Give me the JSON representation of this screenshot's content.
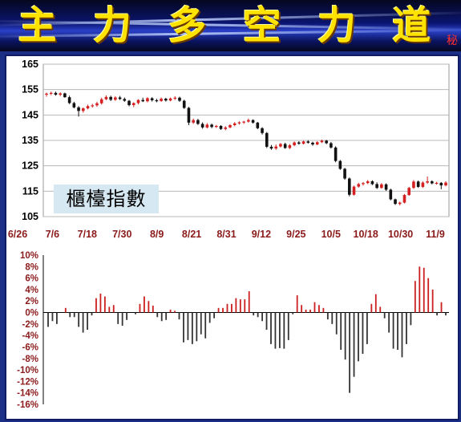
{
  "header": {
    "title_chars": [
      "主",
      "力",
      "多",
      "空",
      "力",
      "道"
    ],
    "secret_mark": "秘"
  },
  "stock_label": "櫃檯指數",
  "colors": {
    "up": "#d42020",
    "down": "#111111",
    "bar_up": "#cc1f1f",
    "bar_down": "#333333",
    "frame": "#1b2f86",
    "axis_text_x": "#8b1a1a"
  },
  "chart_data": [
    {
      "type": "candlestick",
      "title": "",
      "ylim": [
        105,
        165
      ],
      "yticks": [
        105,
        115,
        125,
        135,
        145,
        155,
        165
      ],
      "grid": true,
      "x_tick_labels": [
        "6/26",
        "7/6",
        "7/18",
        "7/30",
        "8/9",
        "8/21",
        "8/31",
        "9/12",
        "9/25",
        "10/5",
        "10/18",
        "10/30",
        "11/9"
      ],
      "candles": [
        {
          "o": 153.0,
          "h": 153.8,
          "l": 152.2,
          "c": 153.4
        },
        {
          "o": 153.4,
          "h": 154.2,
          "l": 152.8,
          "c": 153.7
        },
        {
          "o": 153.7,
          "h": 154.2,
          "l": 152.6,
          "c": 153.0
        },
        {
          "o": 153.0,
          "h": 153.9,
          "l": 152.4,
          "c": 153.5
        },
        {
          "o": 153.5,
          "h": 153.8,
          "l": 151.8,
          "c": 152.0
        },
        {
          "o": 152.0,
          "h": 152.6,
          "l": 149.3,
          "c": 149.7
        },
        {
          "o": 149.7,
          "h": 150.2,
          "l": 147.6,
          "c": 148.0
        },
        {
          "o": 148.0,
          "h": 148.5,
          "l": 144.4,
          "c": 146.6
        },
        {
          "o": 146.6,
          "h": 148.0,
          "l": 145.9,
          "c": 147.6
        },
        {
          "o": 147.6,
          "h": 149.1,
          "l": 147.2,
          "c": 148.5
        },
        {
          "o": 148.5,
          "h": 149.4,
          "l": 147.9,
          "c": 148.8
        },
        {
          "o": 148.8,
          "h": 150.2,
          "l": 148.2,
          "c": 149.6
        },
        {
          "o": 149.6,
          "h": 151.8,
          "l": 149.1,
          "c": 151.2
        },
        {
          "o": 151.2,
          "h": 152.7,
          "l": 150.8,
          "c": 152.1
        },
        {
          "o": 152.1,
          "h": 152.6,
          "l": 150.5,
          "c": 151.0
        },
        {
          "o": 151.0,
          "h": 152.4,
          "l": 150.6,
          "c": 151.9
        },
        {
          "o": 151.9,
          "h": 152.5,
          "l": 150.9,
          "c": 151.3
        },
        {
          "o": 151.3,
          "h": 151.9,
          "l": 150.2,
          "c": 150.6
        },
        {
          "o": 150.6,
          "h": 150.9,
          "l": 148.4,
          "c": 148.9
        },
        {
          "o": 148.9,
          "h": 150.0,
          "l": 148.1,
          "c": 149.7
        },
        {
          "o": 149.7,
          "h": 151.2,
          "l": 149.2,
          "c": 150.9
        },
        {
          "o": 150.9,
          "h": 151.8,
          "l": 150.1,
          "c": 150.4
        },
        {
          "o": 150.4,
          "h": 152.0,
          "l": 150.0,
          "c": 151.6
        },
        {
          "o": 151.6,
          "h": 152.0,
          "l": 150.3,
          "c": 150.8
        },
        {
          "o": 150.8,
          "h": 151.4,
          "l": 150.0,
          "c": 150.5
        },
        {
          "o": 150.5,
          "h": 151.9,
          "l": 150.2,
          "c": 151.4
        },
        {
          "o": 151.4,
          "h": 151.8,
          "l": 150.3,
          "c": 150.7
        },
        {
          "o": 150.7,
          "h": 151.9,
          "l": 150.4,
          "c": 151.5
        },
        {
          "o": 151.5,
          "h": 152.4,
          "l": 150.9,
          "c": 151.8
        },
        {
          "o": 151.8,
          "h": 152.2,
          "l": 150.2,
          "c": 150.6
        },
        {
          "o": 150.6,
          "h": 151.0,
          "l": 147.4,
          "c": 147.8
        },
        {
          "o": 147.8,
          "h": 148.2,
          "l": 141.0,
          "c": 142.0
        },
        {
          "o": 142.0,
          "h": 143.6,
          "l": 141.5,
          "c": 143.0
        },
        {
          "o": 143.0,
          "h": 143.5,
          "l": 141.1,
          "c": 141.5
        },
        {
          "o": 141.5,
          "h": 142.1,
          "l": 139.6,
          "c": 140.1
        },
        {
          "o": 140.1,
          "h": 141.8,
          "l": 139.7,
          "c": 141.2
        },
        {
          "o": 141.2,
          "h": 141.6,
          "l": 139.8,
          "c": 140.3
        },
        {
          "o": 140.3,
          "h": 141.1,
          "l": 139.9,
          "c": 140.7
        },
        {
          "o": 140.7,
          "h": 141.0,
          "l": 139.1,
          "c": 139.5
        },
        {
          "o": 139.5,
          "h": 140.6,
          "l": 139.0,
          "c": 140.1
        },
        {
          "o": 140.1,
          "h": 141.4,
          "l": 139.8,
          "c": 141.0
        },
        {
          "o": 141.0,
          "h": 142.2,
          "l": 140.6,
          "c": 141.7
        },
        {
          "o": 141.7,
          "h": 142.5,
          "l": 141.2,
          "c": 142.1
        },
        {
          "o": 142.1,
          "h": 142.7,
          "l": 141.5,
          "c": 142.4
        },
        {
          "o": 142.4,
          "h": 143.6,
          "l": 142.0,
          "c": 143.0
        },
        {
          "o": 143.0,
          "h": 143.3,
          "l": 141.6,
          "c": 142.0
        },
        {
          "o": 142.0,
          "h": 142.3,
          "l": 139.4,
          "c": 139.8
        },
        {
          "o": 139.8,
          "h": 140.2,
          "l": 137.3,
          "c": 137.9
        },
        {
          "o": 137.9,
          "h": 138.3,
          "l": 132.0,
          "c": 132.5
        },
        {
          "o": 132.5,
          "h": 133.2,
          "l": 131.3,
          "c": 131.8
        },
        {
          "o": 131.8,
          "h": 133.4,
          "l": 131.3,
          "c": 132.6
        },
        {
          "o": 132.6,
          "h": 134.0,
          "l": 132.2,
          "c": 133.6
        },
        {
          "o": 133.6,
          "h": 134.1,
          "l": 131.7,
          "c": 132.0
        },
        {
          "o": 132.0,
          "h": 133.6,
          "l": 131.6,
          "c": 133.1
        },
        {
          "o": 133.1,
          "h": 134.6,
          "l": 132.7,
          "c": 134.2
        },
        {
          "o": 134.2,
          "h": 134.7,
          "l": 133.3,
          "c": 133.7
        },
        {
          "o": 133.7,
          "h": 134.9,
          "l": 133.4,
          "c": 134.6
        },
        {
          "o": 134.6,
          "h": 135.1,
          "l": 133.7,
          "c": 134.1
        },
        {
          "o": 134.1,
          "h": 134.5,
          "l": 132.9,
          "c": 133.4
        },
        {
          "o": 133.4,
          "h": 134.7,
          "l": 133.1,
          "c": 134.3
        },
        {
          "o": 134.3,
          "h": 135.3,
          "l": 134.0,
          "c": 134.9
        },
        {
          "o": 134.9,
          "h": 135.2,
          "l": 133.5,
          "c": 133.9
        },
        {
          "o": 133.9,
          "h": 134.4,
          "l": 131.8,
          "c": 132.2
        },
        {
          "o": 132.2,
          "h": 132.7,
          "l": 126.4,
          "c": 126.9
        },
        {
          "o": 126.9,
          "h": 127.3,
          "l": 123.4,
          "c": 123.8
        },
        {
          "o": 123.8,
          "h": 124.2,
          "l": 119.5,
          "c": 120.0
        },
        {
          "o": 120.0,
          "h": 120.4,
          "l": 113.0,
          "c": 113.6
        },
        {
          "o": 113.6,
          "h": 117.2,
          "l": 113.3,
          "c": 116.8
        },
        {
          "o": 116.8,
          "h": 118.3,
          "l": 116.4,
          "c": 117.8
        },
        {
          "o": 117.8,
          "h": 118.6,
          "l": 117.2,
          "c": 118.2
        },
        {
          "o": 118.2,
          "h": 119.4,
          "l": 117.8,
          "c": 118.9
        },
        {
          "o": 118.9,
          "h": 119.3,
          "l": 117.4,
          "c": 117.8
        },
        {
          "o": 117.8,
          "h": 118.5,
          "l": 115.9,
          "c": 116.3
        },
        {
          "o": 116.3,
          "h": 118.2,
          "l": 116.0,
          "c": 117.7
        },
        {
          "o": 117.7,
          "h": 118.1,
          "l": 115.1,
          "c": 115.6
        },
        {
          "o": 115.6,
          "h": 116.0,
          "l": 111.4,
          "c": 111.8
        },
        {
          "o": 111.8,
          "h": 112.1,
          "l": 109.6,
          "c": 110.0
        },
        {
          "o": 110.0,
          "h": 110.9,
          "l": 109.4,
          "c": 110.5
        },
        {
          "o": 110.5,
          "h": 113.9,
          "l": 110.2,
          "c": 113.5
        },
        {
          "o": 113.5,
          "h": 116.7,
          "l": 113.2,
          "c": 116.3
        },
        {
          "o": 116.3,
          "h": 119.4,
          "l": 115.9,
          "c": 118.8
        },
        {
          "o": 118.8,
          "h": 119.2,
          "l": 116.3,
          "c": 116.7
        },
        {
          "o": 116.7,
          "h": 118.9,
          "l": 116.3,
          "c": 118.4
        },
        {
          "o": 118.4,
          "h": 120.8,
          "l": 117.9,
          "c": 118.9
        },
        {
          "o": 118.9,
          "h": 119.3,
          "l": 117.7,
          "c": 118.1
        },
        {
          "o": 118.1,
          "h": 118.7,
          "l": 117.6,
          "c": 118.3
        },
        {
          "o": 118.3,
          "h": 118.6,
          "l": 115.8,
          "c": 117.3
        },
        {
          "o": 117.3,
          "h": 118.9,
          "l": 116.9,
          "c": 118.4
        }
      ]
    },
    {
      "type": "bar",
      "title": "",
      "ylim": [
        -16,
        10
      ],
      "yticks": [
        "10%",
        "8%",
        "6%",
        "4%",
        "2%",
        "0%",
        "-2%",
        "-4%",
        "-6%",
        "-8%",
        "-10%",
        "-12%",
        "-14%",
        "-16%"
      ],
      "unit": "%",
      "values": [
        -2.5,
        -1.5,
        -2.0,
        0.0,
        0.8,
        -0.8,
        -0.8,
        -2.5,
        -3.5,
        -3.0,
        -0.5,
        2.5,
        3.3,
        2.8,
        1.0,
        1.3,
        -2.0,
        -2.3,
        -1.3,
        0.0,
        -0.3,
        1.5,
        2.8,
        2.0,
        1.2,
        -0.8,
        -1.5,
        -1.3,
        0.5,
        0.3,
        -1.2,
        -5.2,
        -4.8,
        -5.5,
        -5.0,
        -3.8,
        -4.5,
        -1.8,
        -1.0,
        0.8,
        0.8,
        1.5,
        1.5,
        2.5,
        2.3,
        2.3,
        3.7,
        -0.5,
        -0.8,
        -1.5,
        -3.0,
        -5.5,
        -6.3,
        -6.2,
        -6.3,
        -4.8,
        -0.3,
        3.0,
        1.3,
        0.5,
        0.5,
        1.8,
        1.3,
        0.8,
        -1.2,
        -2.0,
        -3.8,
        -6.5,
        -8.2,
        -14.0,
        -11.2,
        -8.5,
        -7.2,
        -5.5,
        1.5,
        3.2,
        1.0,
        -1.0,
        -3.5,
        -6.3,
        -6.5,
        -7.8,
        -5.5,
        -2.2,
        5.5,
        8.0,
        7.8,
        6.0,
        4.0,
        -0.5,
        1.8,
        -0.5
      ]
    }
  ]
}
